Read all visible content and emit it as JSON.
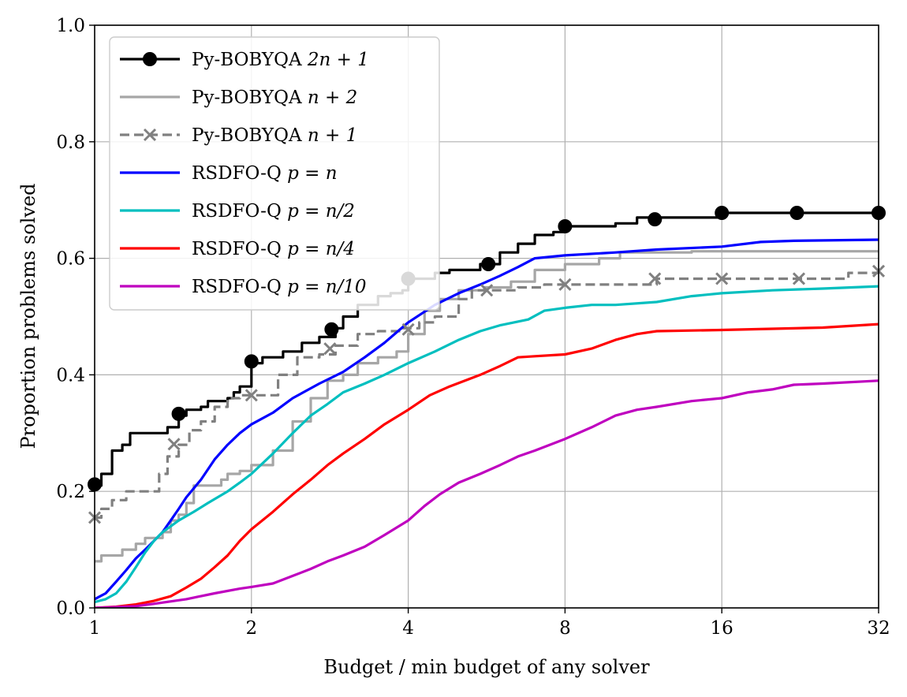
{
  "chart_data": {
    "type": "line",
    "title": "",
    "xlabel": "Budget / min budget of any solver",
    "ylabel": "Proportion problems solved",
    "xscale": "log2",
    "xlim": [
      1,
      32
    ],
    "ylim": [
      0.0,
      1.0
    ],
    "grid": true,
    "legend_position": "upper-left",
    "x_ticks": [
      1,
      2,
      4,
      8,
      16,
      32
    ],
    "x_tick_labels": [
      "1",
      "2",
      "4",
      "8",
      "16",
      "32"
    ],
    "y_ticks": [
      0.0,
      0.2,
      0.4,
      0.6,
      0.8,
      1.0
    ],
    "y_tick_labels": [
      "0.0",
      "0.2",
      "0.4",
      "0.6",
      "0.8",
      "1.0"
    ],
    "series": [
      {
        "name": "Py-BOBYQA 2n + 1",
        "legend_text": "Py-BOBYQA ",
        "legend_math": "2n + 1",
        "color": "#000000",
        "linestyle": "solid",
        "marker": "circle",
        "step": true,
        "points": [
          [
            1,
            0.21
          ],
          [
            1.03,
            0.23
          ],
          [
            1.08,
            0.27
          ],
          [
            1.13,
            0.28
          ],
          [
            1.17,
            0.3
          ],
          [
            1.32,
            0.3
          ],
          [
            1.38,
            0.31
          ],
          [
            1.45,
            0.33
          ],
          [
            1.5,
            0.34
          ],
          [
            1.6,
            0.345
          ],
          [
            1.65,
            0.355
          ],
          [
            1.8,
            0.36
          ],
          [
            1.85,
            0.37
          ],
          [
            1.9,
            0.38
          ],
          [
            2.0,
            0.42
          ],
          [
            2.1,
            0.43
          ],
          [
            2.3,
            0.44
          ],
          [
            2.5,
            0.455
          ],
          [
            2.7,
            0.465
          ],
          [
            2.9,
            0.48
          ],
          [
            3.0,
            0.5
          ],
          [
            3.2,
            0.52
          ],
          [
            3.4,
            0.52
          ],
          [
            3.5,
            0.535
          ],
          [
            3.7,
            0.54
          ],
          [
            3.9,
            0.545
          ],
          [
            4.0,
            0.565
          ],
          [
            4.5,
            0.575
          ],
          [
            4.8,
            0.58
          ],
          [
            5.5,
            0.59
          ],
          [
            6.0,
            0.61
          ],
          [
            6.5,
            0.625
          ],
          [
            7.0,
            0.64
          ],
          [
            7.6,
            0.645
          ],
          [
            8.0,
            0.655
          ],
          [
            10.0,
            0.66
          ],
          [
            11.0,
            0.67
          ],
          [
            12.0,
            0.67
          ],
          [
            16.0,
            0.678
          ],
          [
            32.0,
            0.678
          ]
        ],
        "markers": [
          [
            1,
            0.212
          ],
          [
            1.45,
            0.333
          ],
          [
            2.0,
            0.423
          ],
          [
            2.85,
            0.478
          ],
          [
            4.0,
            0.565
          ],
          [
            5.7,
            0.59
          ],
          [
            8.0,
            0.655
          ],
          [
            11.9,
            0.667
          ],
          [
            16.0,
            0.678
          ],
          [
            22.3,
            0.678
          ],
          [
            32.0,
            0.678
          ]
        ]
      },
      {
        "name": "Py-BOBYQA n + 2",
        "legend_text": "Py-BOBYQA ",
        "legend_math": "n + 2",
        "color": "#a6a6a6",
        "linestyle": "solid",
        "marker": "none",
        "step": true,
        "points": [
          [
            1,
            0.08
          ],
          [
            1.03,
            0.09
          ],
          [
            1.08,
            0.09
          ],
          [
            1.13,
            0.1
          ],
          [
            1.2,
            0.11
          ],
          [
            1.25,
            0.12
          ],
          [
            1.3,
            0.12
          ],
          [
            1.35,
            0.13
          ],
          [
            1.4,
            0.15
          ],
          [
            1.45,
            0.16
          ],
          [
            1.5,
            0.18
          ],
          [
            1.55,
            0.21
          ],
          [
            1.65,
            0.21
          ],
          [
            1.75,
            0.22
          ],
          [
            1.8,
            0.23
          ],
          [
            1.9,
            0.235
          ],
          [
            2.0,
            0.245
          ],
          [
            2.2,
            0.27
          ],
          [
            2.4,
            0.32
          ],
          [
            2.6,
            0.36
          ],
          [
            2.8,
            0.39
          ],
          [
            3.0,
            0.4
          ],
          [
            3.2,
            0.42
          ],
          [
            3.5,
            0.43
          ],
          [
            3.8,
            0.44
          ],
          [
            4.0,
            0.47
          ],
          [
            4.3,
            0.51
          ],
          [
            4.6,
            0.53
          ],
          [
            5.0,
            0.545
          ],
          [
            5.6,
            0.55
          ],
          [
            6.3,
            0.56
          ],
          [
            7.0,
            0.58
          ],
          [
            8.0,
            0.59
          ],
          [
            9.3,
            0.6
          ],
          [
            10.2,
            0.61
          ],
          [
            14.0,
            0.612
          ],
          [
            32.0,
            0.612
          ]
        ]
      },
      {
        "name": "Py-BOBYQA n + 1",
        "legend_text": "Py-BOBYQA ",
        "legend_math": "n + 1",
        "color": "#808080",
        "linestyle": "dashed",
        "marker": "x",
        "step": true,
        "points": [
          [
            1,
            0.155
          ],
          [
            1.03,
            0.17
          ],
          [
            1.08,
            0.185
          ],
          [
            1.15,
            0.2
          ],
          [
            1.28,
            0.2
          ],
          [
            1.33,
            0.23
          ],
          [
            1.38,
            0.26
          ],
          [
            1.45,
            0.28
          ],
          [
            1.52,
            0.305
          ],
          [
            1.6,
            0.32
          ],
          [
            1.7,
            0.345
          ],
          [
            1.8,
            0.36
          ],
          [
            1.9,
            0.365
          ],
          [
            2.0,
            0.365
          ],
          [
            2.25,
            0.4
          ],
          [
            2.45,
            0.43
          ],
          [
            2.7,
            0.435
          ],
          [
            2.9,
            0.45
          ],
          [
            3.2,
            0.47
          ],
          [
            3.5,
            0.475
          ],
          [
            3.9,
            0.48
          ],
          [
            4.2,
            0.49
          ],
          [
            4.5,
            0.5
          ],
          [
            5.0,
            0.53
          ],
          [
            5.3,
            0.545
          ],
          [
            6.5,
            0.55
          ],
          [
            7.3,
            0.555
          ],
          [
            12.0,
            0.565
          ],
          [
            26.5,
            0.565
          ],
          [
            28.0,
            0.575
          ],
          [
            32.0,
            0.578
          ]
        ],
        "markers": [
          [
            1,
            0.155
          ],
          [
            1.42,
            0.281
          ],
          [
            2.0,
            0.365
          ],
          [
            2.83,
            0.445
          ],
          [
            4.0,
            0.478
          ],
          [
            5.66,
            0.545
          ],
          [
            8.0,
            0.555
          ],
          [
            11.9,
            0.565
          ],
          [
            16.0,
            0.565
          ],
          [
            22.5,
            0.565
          ],
          [
            32.0,
            0.578
          ]
        ]
      },
      {
        "name": "RSDFO-Q p = n",
        "legend_text": "RSDFO-Q ",
        "legend_math": "p = n",
        "color": "#0000ff",
        "linestyle": "solid",
        "marker": "none",
        "step": false,
        "points": [
          [
            1,
            0.015
          ],
          [
            1.05,
            0.025
          ],
          [
            1.1,
            0.045
          ],
          [
            1.15,
            0.065
          ],
          [
            1.2,
            0.085
          ],
          [
            1.25,
            0.1
          ],
          [
            1.3,
            0.115
          ],
          [
            1.35,
            0.13
          ],
          [
            1.4,
            0.15
          ],
          [
            1.45,
            0.17
          ],
          [
            1.5,
            0.19
          ],
          [
            1.6,
            0.22
          ],
          [
            1.7,
            0.255
          ],
          [
            1.8,
            0.28
          ],
          [
            1.9,
            0.3
          ],
          [
            2.0,
            0.315
          ],
          [
            2.2,
            0.335
          ],
          [
            2.4,
            0.36
          ],
          [
            2.7,
            0.385
          ],
          [
            3.0,
            0.405
          ],
          [
            3.3,
            0.43
          ],
          [
            3.6,
            0.455
          ],
          [
            4.0,
            0.49
          ],
          [
            4.5,
            0.52
          ],
          [
            5.0,
            0.54
          ],
          [
            5.5,
            0.555
          ],
          [
            6.0,
            0.57
          ],
          [
            6.5,
            0.585
          ],
          [
            7.0,
            0.6
          ],
          [
            8.0,
            0.605
          ],
          [
            10.0,
            0.61
          ],
          [
            12.0,
            0.615
          ],
          [
            16.0,
            0.62
          ],
          [
            19.0,
            0.628
          ],
          [
            22.0,
            0.63
          ],
          [
            32.0,
            0.632
          ]
        ]
      },
      {
        "name": "RSDFO-Q p = n/2",
        "legend_text": "RSDFO-Q ",
        "legend_math": "p = n/2",
        "color": "#00bfbf",
        "linestyle": "solid",
        "marker": "none",
        "step": false,
        "points": [
          [
            1,
            0.01
          ],
          [
            1.05,
            0.015
          ],
          [
            1.1,
            0.025
          ],
          [
            1.15,
            0.045
          ],
          [
            1.2,
            0.07
          ],
          [
            1.25,
            0.095
          ],
          [
            1.3,
            0.115
          ],
          [
            1.35,
            0.13
          ],
          [
            1.4,
            0.14
          ],
          [
            1.45,
            0.15
          ],
          [
            1.55,
            0.165
          ],
          [
            1.65,
            0.18
          ],
          [
            1.8,
            0.2
          ],
          [
            1.9,
            0.215
          ],
          [
            2.0,
            0.23
          ],
          [
            2.2,
            0.265
          ],
          [
            2.4,
            0.3
          ],
          [
            2.6,
            0.33
          ],
          [
            2.8,
            0.35
          ],
          [
            3.0,
            0.37
          ],
          [
            3.3,
            0.385
          ],
          [
            3.6,
            0.4
          ],
          [
            4.0,
            0.42
          ],
          [
            4.5,
            0.44
          ],
          [
            5.0,
            0.46
          ],
          [
            5.5,
            0.475
          ],
          [
            6.0,
            0.485
          ],
          [
            6.8,
            0.495
          ],
          [
            7.3,
            0.51
          ],
          [
            8.0,
            0.515
          ],
          [
            9.0,
            0.52
          ],
          [
            10.0,
            0.52
          ],
          [
            12.0,
            0.525
          ],
          [
            14.0,
            0.535
          ],
          [
            16.0,
            0.54
          ],
          [
            20.0,
            0.545
          ],
          [
            25.0,
            0.548
          ],
          [
            32.0,
            0.552
          ]
        ]
      },
      {
        "name": "RSDFO-Q p = n/4",
        "legend_text": "RSDFO-Q ",
        "legend_math": "p = n/4",
        "color": "#ff0000",
        "linestyle": "solid",
        "marker": "none",
        "step": false,
        "points": [
          [
            1,
            0.0
          ],
          [
            1.1,
            0.002
          ],
          [
            1.2,
            0.006
          ],
          [
            1.3,
            0.012
          ],
          [
            1.4,
            0.02
          ],
          [
            1.5,
            0.035
          ],
          [
            1.6,
            0.05
          ],
          [
            1.7,
            0.07
          ],
          [
            1.8,
            0.09
          ],
          [
            1.9,
            0.115
          ],
          [
            2.0,
            0.135
          ],
          [
            2.2,
            0.165
          ],
          [
            2.4,
            0.195
          ],
          [
            2.6,
            0.22
          ],
          [
            2.8,
            0.245
          ],
          [
            3.0,
            0.265
          ],
          [
            3.3,
            0.29
          ],
          [
            3.6,
            0.315
          ],
          [
            4.0,
            0.34
          ],
          [
            4.4,
            0.365
          ],
          [
            4.8,
            0.38
          ],
          [
            5.5,
            0.4
          ],
          [
            6.0,
            0.415
          ],
          [
            6.5,
            0.43
          ],
          [
            7.0,
            0.432
          ],
          [
            8.0,
            0.435
          ],
          [
            9.0,
            0.445
          ],
          [
            10.0,
            0.46
          ],
          [
            11.0,
            0.47
          ],
          [
            12.0,
            0.475
          ],
          [
            16.0,
            0.477
          ],
          [
            20.0,
            0.479
          ],
          [
            25.0,
            0.481
          ],
          [
            32.0,
            0.487
          ]
        ]
      },
      {
        "name": "RSDFO-Q p = n/10",
        "legend_text": "RSDFO-Q ",
        "legend_math": "p = n/10",
        "color": "#bf00bf",
        "linestyle": "solid",
        "marker": "none",
        "step": false,
        "points": [
          [
            1,
            0.0
          ],
          [
            1.2,
            0.003
          ],
          [
            1.3,
            0.007
          ],
          [
            1.5,
            0.015
          ],
          [
            1.7,
            0.025
          ],
          [
            1.9,
            0.033
          ],
          [
            2.0,
            0.036
          ],
          [
            2.2,
            0.042
          ],
          [
            2.4,
            0.055
          ],
          [
            2.6,
            0.067
          ],
          [
            2.8,
            0.08
          ],
          [
            3.0,
            0.09
          ],
          [
            3.3,
            0.105
          ],
          [
            3.6,
            0.125
          ],
          [
            4.0,
            0.15
          ],
          [
            4.3,
            0.175
          ],
          [
            4.6,
            0.195
          ],
          [
            5.0,
            0.215
          ],
          [
            5.5,
            0.23
          ],
          [
            6.0,
            0.245
          ],
          [
            6.5,
            0.26
          ],
          [
            7.0,
            0.27
          ],
          [
            8.0,
            0.29
          ],
          [
            9.0,
            0.31
          ],
          [
            10.0,
            0.33
          ],
          [
            11.0,
            0.34
          ],
          [
            12.0,
            0.345
          ],
          [
            14.0,
            0.355
          ],
          [
            16.0,
            0.36
          ],
          [
            18.0,
            0.37
          ],
          [
            20.0,
            0.375
          ],
          [
            22.0,
            0.383
          ],
          [
            25.0,
            0.385
          ],
          [
            32.0,
            0.39
          ]
        ]
      }
    ]
  }
}
